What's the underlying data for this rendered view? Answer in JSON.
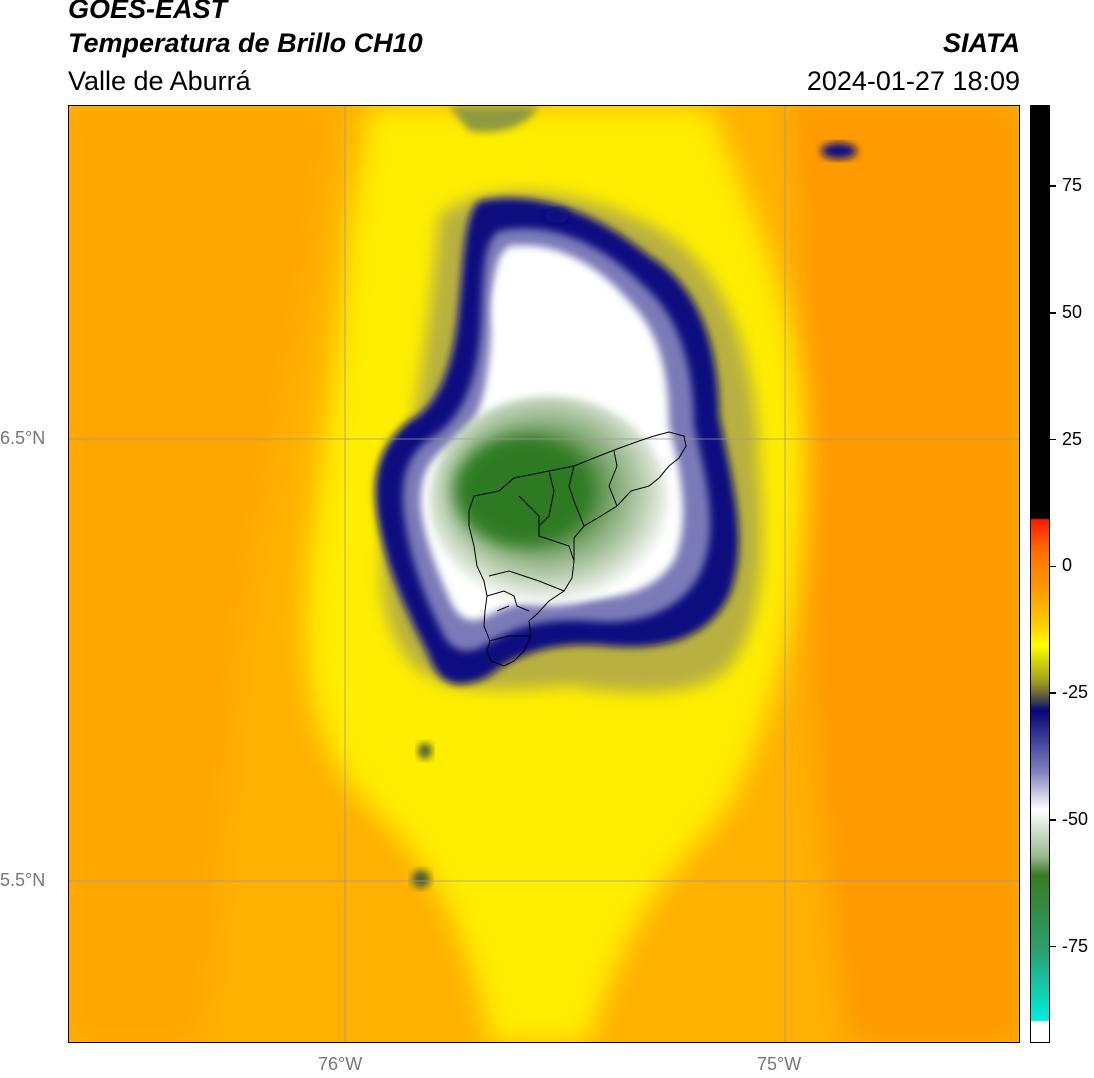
{
  "header": {
    "satellite": "GOES-EAST",
    "product": "Temperatura de Brillo CH10",
    "region": "Valle de Aburrá",
    "agency": "SIATA",
    "datetime": "2024-01-27 18:09"
  },
  "map": {
    "lat_labels": [
      "6.5°N",
      "5.5°N"
    ],
    "lon_labels": [
      "76°W",
      "75°W"
    ]
  },
  "colorbar": {
    "tick_labels": [
      "75",
      "50",
      "25",
      "0",
      "-25",
      "-50",
      "-75"
    ],
    "tick_values": [
      75,
      50,
      25,
      0,
      -25,
      -50,
      -75
    ],
    "range": [
      -94,
      91
    ],
    "colors": {
      "warm_max": "#000000",
      "red": "#ff2a00",
      "orange": "#ff9000",
      "yellow": "#ffff00",
      "olive": "#8a8a1e",
      "navy": "#06067a",
      "white": "#ffffff",
      "green": "#2e7a1a",
      "teal": "#00e8e0"
    }
  }
}
